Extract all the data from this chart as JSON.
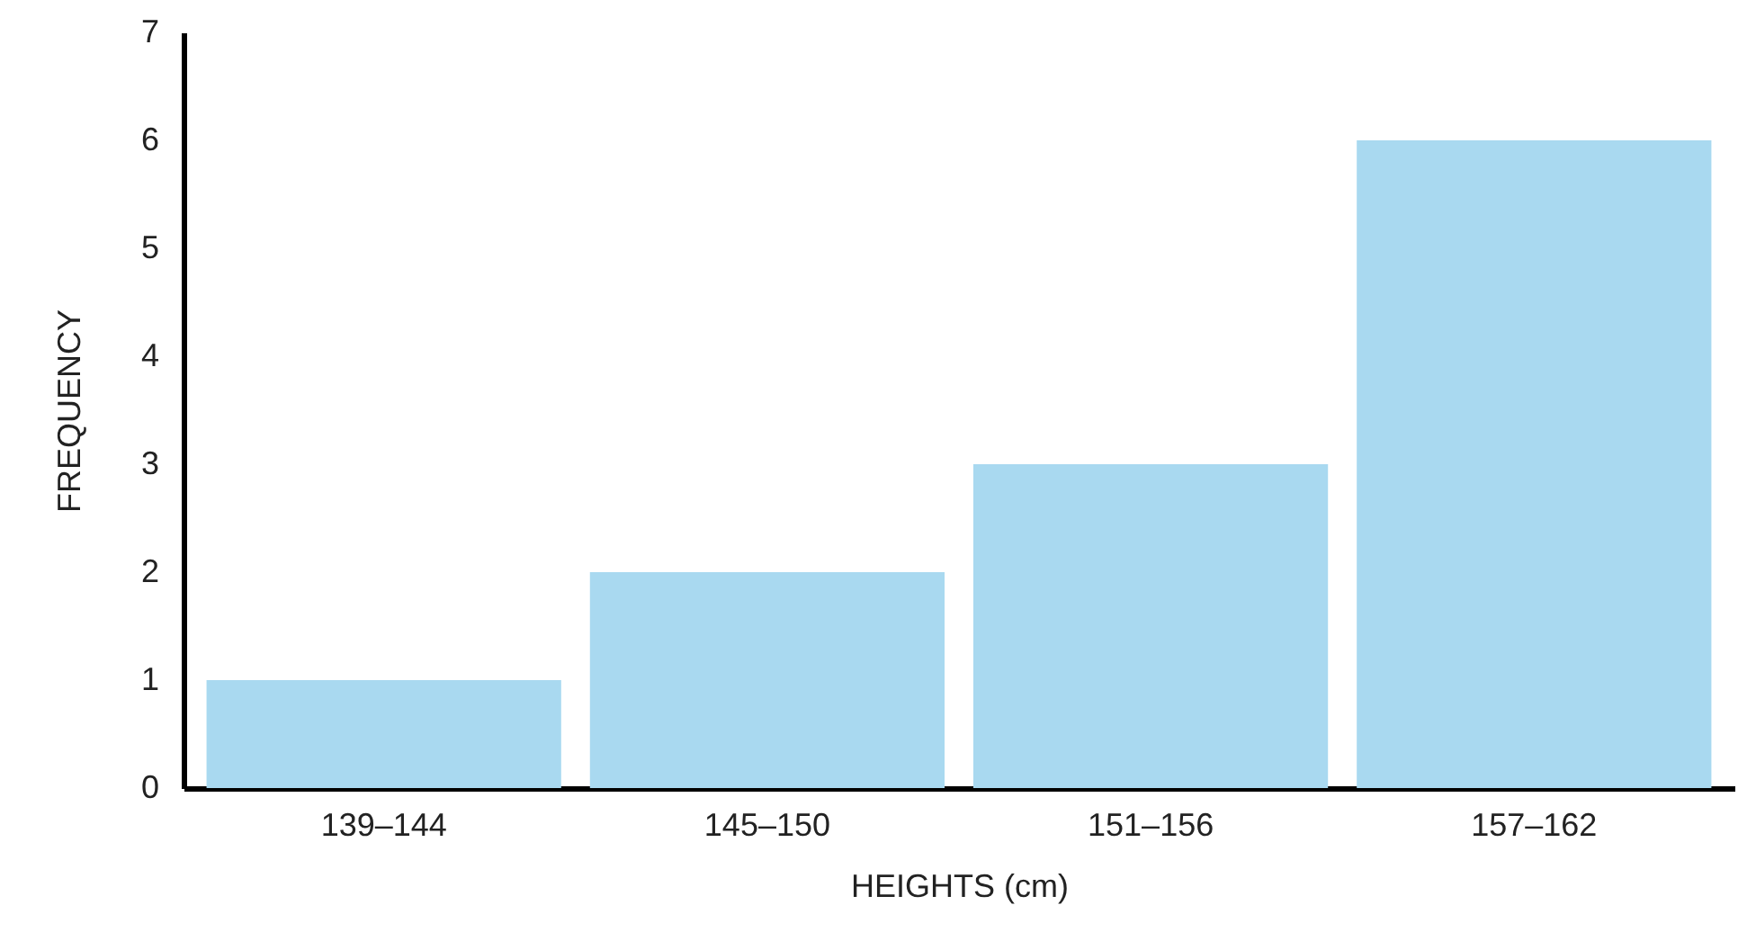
{
  "chart_data": {
    "type": "bar",
    "xlabel": "HEIGHTS (cm)",
    "ylabel": "FREQUENCY",
    "categories": [
      "139–144",
      "145–150",
      "151–156",
      "157–162"
    ],
    "values": [
      1,
      2,
      3,
      6
    ],
    "color": "#a9d9f0",
    "ylim": [
      0,
      7
    ],
    "yticks": [
      0,
      1,
      2,
      3,
      4,
      5,
      6,
      7
    ],
    "grid": false
  }
}
